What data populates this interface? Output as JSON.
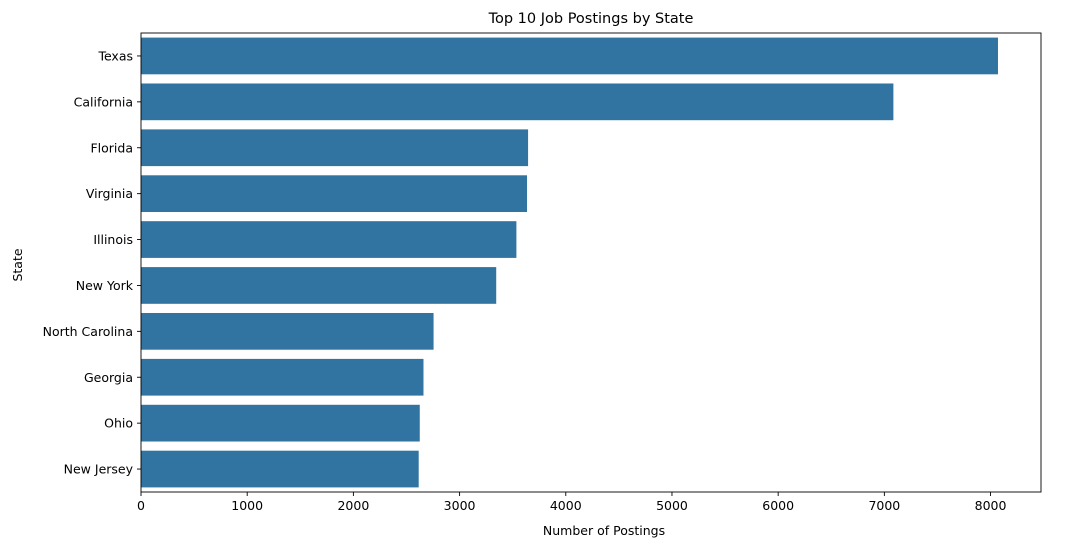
{
  "chart_data": {
    "type": "bar",
    "orientation": "horizontal",
    "title": "Top 10 Job Postings by State",
    "xlabel": "Number of Postings",
    "ylabel": "State",
    "categories": [
      "Texas",
      "California",
      "Florida",
      "Virginia",
      "Illinois",
      "New York",
      "North Carolina",
      "Georgia",
      "Ohio",
      "New Jersey"
    ],
    "values": [
      8070,
      7085,
      3645,
      3635,
      3535,
      3345,
      2755,
      2660,
      2625,
      2615
    ],
    "xlim": [
      0,
      8475
    ],
    "xticks": [
      0,
      1000,
      2000,
      3000,
      4000,
      5000,
      6000,
      7000,
      8000
    ],
    "grid": false,
    "bar_color": "#3274a1"
  }
}
